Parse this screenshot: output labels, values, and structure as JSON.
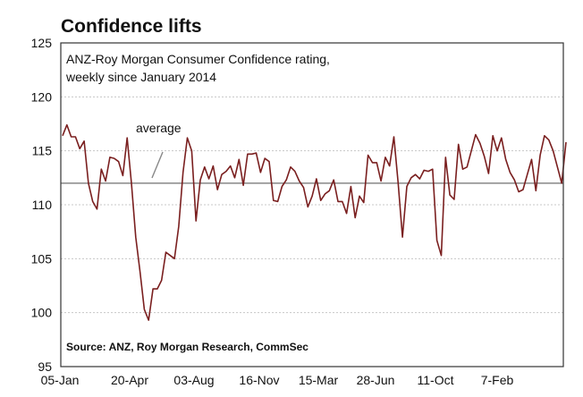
{
  "chart_data": {
    "type": "line",
    "title": "Confidence lifts",
    "subtitle": [
      "ANZ-Roy Morgan Consumer Confidence rating,",
      "weekly since January 2014"
    ],
    "source": "Source: ANZ, Roy Morgan Research, CommSec",
    "annotation": "average",
    "average": 112,
    "ylim": [
      95,
      125
    ],
    "yticks": [
      95,
      100,
      105,
      110,
      115,
      120,
      125
    ],
    "x_tick_labels": [
      "05-Jan",
      "20-Apr",
      "03-Aug",
      "16-Nov",
      "15-Mar",
      "28-Jun",
      "11-Oct",
      "7-Feb"
    ],
    "grid": true,
    "series": [
      {
        "values": [
          116.4,
          117.4,
          116.3,
          116.3,
          115.2,
          115.9,
          112.0,
          110.3,
          109.6,
          113.3,
          112.2,
          114.4,
          114.3,
          114.0,
          112.7,
          116.2,
          112.0,
          107.0,
          103.8,
          100.3,
          99.3,
          102.2,
          102.2,
          103.0,
          105.6,
          105.3,
          105.0,
          108.0,
          113.0,
          116.2,
          115.0,
          108.5,
          112.3,
          113.5,
          112.4,
          113.6,
          111.4,
          112.8,
          113.1,
          113.6,
          112.5,
          114.2,
          111.8,
          114.7,
          114.7,
          114.8,
          113.0,
          114.3,
          114.0,
          110.4,
          110.3,
          111.7,
          112.3,
          113.5,
          113.1,
          112.2,
          111.6,
          109.8,
          110.8,
          112.4,
          110.4,
          111.0,
          111.3,
          112.3,
          110.3,
          110.3,
          109.2,
          111.7,
          108.8,
          110.8,
          110.2,
          114.6,
          113.9,
          113.9,
          112.2,
          114.4,
          113.6,
          116.3,
          112.0,
          107.0,
          111.7,
          112.5,
          112.8,
          112.4,
          113.2,
          113.1,
          113.3,
          106.7,
          105.3,
          114.4,
          110.9,
          110.5,
          115.6,
          113.3,
          113.5,
          115.0,
          116.5,
          115.7,
          114.5,
          112.9,
          116.4,
          115.0,
          116.2,
          114.2,
          113.0,
          112.3,
          111.2,
          111.4,
          112.8,
          114.2,
          111.3,
          114.6,
          116.4,
          116.0,
          115.0,
          113.5,
          112.0,
          115.8
        ]
      }
    ]
  }
}
